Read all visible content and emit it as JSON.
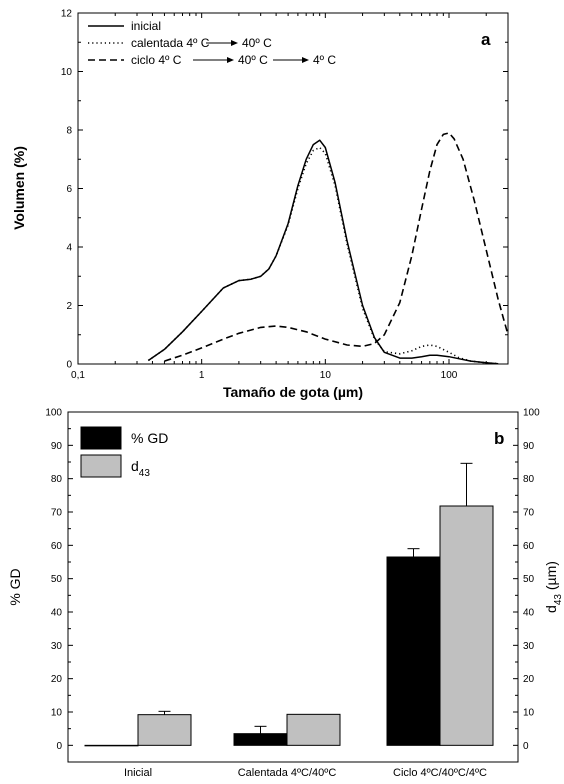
{
  "chart_data": [
    {
      "type": "line",
      "panel_label": "a",
      "xlabel": "Tamaño de gota (µm)",
      "ylabel": "Volumen (%)",
      "xscale": "log",
      "xlim": [
        0.1,
        300
      ],
      "ylim": [
        0,
        12
      ],
      "xticks": [
        {
          "v": 0.1,
          "label": "0,1"
        },
        {
          "v": 1,
          "label": "1"
        },
        {
          "v": 10,
          "label": "10"
        },
        {
          "v": 100,
          "label": "100"
        }
      ],
      "yticks": [
        0,
        2,
        4,
        6,
        8,
        10,
        12
      ],
      "legend_position": "top-left",
      "series": [
        {
          "name": "inicial",
          "style": "solid",
          "x": [
            0.37,
            0.5,
            0.7,
            1.0,
            1.5,
            2.0,
            2.5,
            3.0,
            3.5,
            4.0,
            5.0,
            6.0,
            7.0,
            8.0,
            9.0,
            10,
            12,
            15,
            20,
            25,
            30,
            40,
            50,
            60,
            70,
            80,
            100,
            120,
            150,
            200,
            250
          ],
          "y": [
            0.12,
            0.5,
            1.1,
            1.8,
            2.6,
            2.85,
            2.9,
            3.0,
            3.25,
            3.7,
            4.8,
            6.1,
            7.0,
            7.5,
            7.65,
            7.4,
            6.2,
            4.2,
            2.0,
            0.9,
            0.4,
            0.2,
            0.2,
            0.25,
            0.3,
            0.3,
            0.25,
            0.18,
            0.1,
            0.04,
            0.01
          ]
        },
        {
          "name": "calentada 4º C → 40º C",
          "label_parts": [
            "calentada 4º C",
            "40º C"
          ],
          "style": "dotted",
          "x": [
            0.37,
            0.5,
            0.7,
            1.0,
            1.5,
            2.0,
            2.5,
            3.0,
            3.5,
            4.0,
            5.0,
            6.0,
            7.0,
            8.0,
            9.0,
            10,
            12,
            15,
            20,
            25,
            30,
            40,
            50,
            60,
            70,
            80,
            100,
            120,
            150,
            200,
            250
          ],
          "y": [
            0.12,
            0.5,
            1.1,
            1.8,
            2.6,
            2.85,
            2.9,
            3.0,
            3.25,
            3.7,
            4.75,
            6.0,
            6.85,
            7.3,
            7.4,
            7.2,
            6.1,
            4.1,
            1.9,
            0.85,
            0.42,
            0.35,
            0.45,
            0.6,
            0.65,
            0.6,
            0.4,
            0.22,
            0.1,
            0.04,
            0.01
          ]
        },
        {
          "name": "ciclo 4º C → 40º C → 4º C",
          "label_parts": [
            "ciclo 4º C",
            "40º C",
            "4º C"
          ],
          "style": "dashed",
          "x": [
            0.5,
            0.7,
            1.0,
            1.5,
            2.0,
            3.0,
            4.0,
            5.0,
            7.0,
            10,
            15,
            20,
            25,
            30,
            40,
            50,
            60,
            70,
            80,
            90,
            100,
            110,
            130,
            160,
            200,
            250,
            300
          ],
          "y": [
            0.1,
            0.3,
            0.55,
            0.85,
            1.05,
            1.25,
            1.3,
            1.25,
            1.1,
            0.85,
            0.65,
            0.6,
            0.7,
            1.0,
            2.1,
            3.7,
            5.3,
            6.6,
            7.5,
            7.85,
            7.9,
            7.7,
            7.0,
            5.6,
            3.9,
            2.2,
            1.0
          ]
        }
      ]
    },
    {
      "type": "bar",
      "panel_label": "b",
      "categories": [
        "Inicial",
        "Calentada 4ºC/40ºC",
        "Ciclo 4ºC/40ºC/4ºC"
      ],
      "ylabel": "% GD",
      "y2label": "d43 (µm)",
      "y2label_parts": [
        "d",
        "43",
        " (µm)"
      ],
      "ylim": [
        -5,
        100
      ],
      "yticks": [
        0,
        10,
        20,
        30,
        40,
        50,
        60,
        70,
        80,
        90,
        100
      ],
      "legend_position": "top-left",
      "series": [
        {
          "name": "% GD",
          "color": "#000000",
          "values": [
            0,
            3.5,
            56.5
          ],
          "errors": [
            0,
            2.2,
            2.5
          ]
        },
        {
          "name": "d43",
          "name_parts": [
            "d",
            "43"
          ],
          "color": "#c0c0c0",
          "values": [
            9.2,
            9.3,
            71.8
          ],
          "errors": [
            1.0,
            0,
            12.8
          ]
        }
      ]
    }
  ]
}
